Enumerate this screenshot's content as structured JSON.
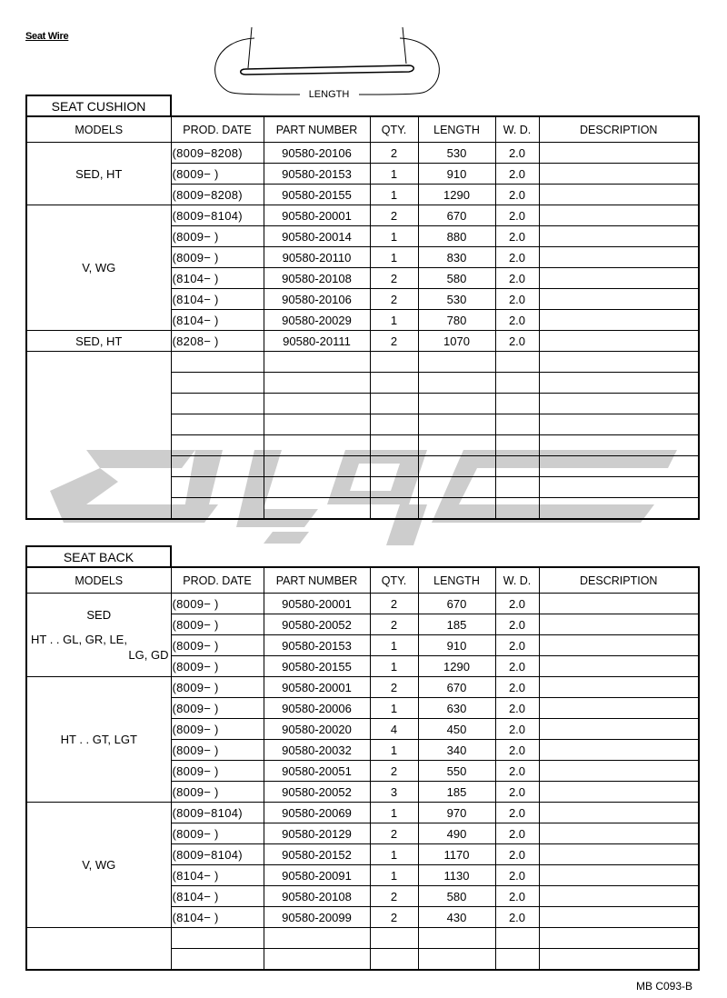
{
  "title": "Seat Wire",
  "diagram": {
    "label": "LENGTH"
  },
  "columns": [
    "MODELS",
    "PROD. DATE",
    "PART NUMBER",
    "QTY.",
    "LENGTH",
    "W. D.",
    "DESCRIPTION"
  ],
  "sections": [
    {
      "title": "SEAT CUSHION",
      "groups": [
        {
          "models": [
            "SED, HT"
          ],
          "rows": [
            [
              "(8009−8208)",
              "90580-20106",
              "2",
              "530",
              "2.0",
              ""
            ],
            [
              "(8009−      )",
              "90580-20153",
              "1",
              "910",
              "2.0",
              ""
            ],
            [
              "(8009−8208)",
              "90580-20155",
              "1",
              "1290",
              "2.0",
              ""
            ]
          ]
        },
        {
          "models": [
            "V, WG"
          ],
          "rows": [
            [
              "(8009−8104)",
              "90580-20001",
              "2",
              "670",
              "2.0",
              ""
            ],
            [
              "(8009−      )",
              "90580-20014",
              "1",
              "880",
              "2.0",
              ""
            ],
            [
              "(8009−      )",
              "90580-20110",
              "1",
              "830",
              "2.0",
              ""
            ],
            [
              "(8104−       )",
              "90580-20108",
              "2",
              "580",
              "2.0",
              ""
            ],
            [
              "(8104−       )",
              "90580-20106",
              "2",
              "530",
              "2.0",
              ""
            ],
            [
              "(8104−       )",
              "90580-20029",
              "1",
              "780",
              "2.0",
              ""
            ]
          ]
        },
        {
          "models": [
            "SED, HT"
          ],
          "rows": [
            [
              "(8208−       )",
              "90580-20111",
              "2",
              "1070",
              "2.0",
              ""
            ]
          ]
        }
      ]
    },
    {
      "title": "SEAT BACK",
      "groups": [
        {
          "models": [
            "SED",
            "HT . . GL, GR, LE,",
            "LG, GD"
          ],
          "rows": [
            [
              "(8009−      )",
              "90580-20001",
              "2",
              "670",
              "2.0",
              ""
            ],
            [
              "(8009−      )",
              "90580-20052",
              "2",
              "185",
              "2.0",
              ""
            ],
            [
              "(8009−      )",
              "90580-20153",
              "1",
              "910",
              "2.0",
              ""
            ],
            [
              "(8009−      )",
              "90580-20155",
              "1",
              "1290",
              "2.0",
              ""
            ]
          ]
        },
        {
          "models": [
            "HT . . GT, LGT"
          ],
          "rows": [
            [
              "(8009−      )",
              "90580-20001",
              "2",
              "670",
              "2.0",
              ""
            ],
            [
              "(8009−      )",
              "90580-20006",
              "1",
              "630",
              "2.0",
              ""
            ],
            [
              "(8009−      )",
              "90580-20020",
              "4",
              "450",
              "2.0",
              ""
            ],
            [
              "(8009−      )",
              "90580-20032",
              "1",
              "340",
              "2.0",
              ""
            ],
            [
              "(8009−      )",
              "90580-20051",
              "2",
              "550",
              "2.0",
              ""
            ],
            [
              "(8009−      )",
              "90580-20052",
              "3",
              "185",
              "2.0",
              ""
            ]
          ]
        },
        {
          "models": [
            "V, WG"
          ],
          "rows": [
            [
              "(8009−8104)",
              "90580-20069",
              "1",
              "970",
              "2.0",
              ""
            ],
            [
              "(8009−      )",
              "90580-20129",
              "2",
              "490",
              "2.0",
              ""
            ],
            [
              "(8009−8104)",
              "90580-20152",
              "1",
              "1170",
              "2.0",
              ""
            ],
            [
              "(8104−       )",
              "90580-20091",
              "1",
              "1130",
              "2.0",
              ""
            ],
            [
              "(8104−       )",
              "90580-20108",
              "2",
              "580",
              "2.0",
              ""
            ],
            [
              "(8104−       )",
              "90580-20099",
              "2",
              "430",
              "2.0",
              ""
            ]
          ]
        }
      ]
    }
  ],
  "footer": "MB C093-B",
  "colors": {
    "ink": "#000000",
    "watermark": "#c8c8c8"
  }
}
